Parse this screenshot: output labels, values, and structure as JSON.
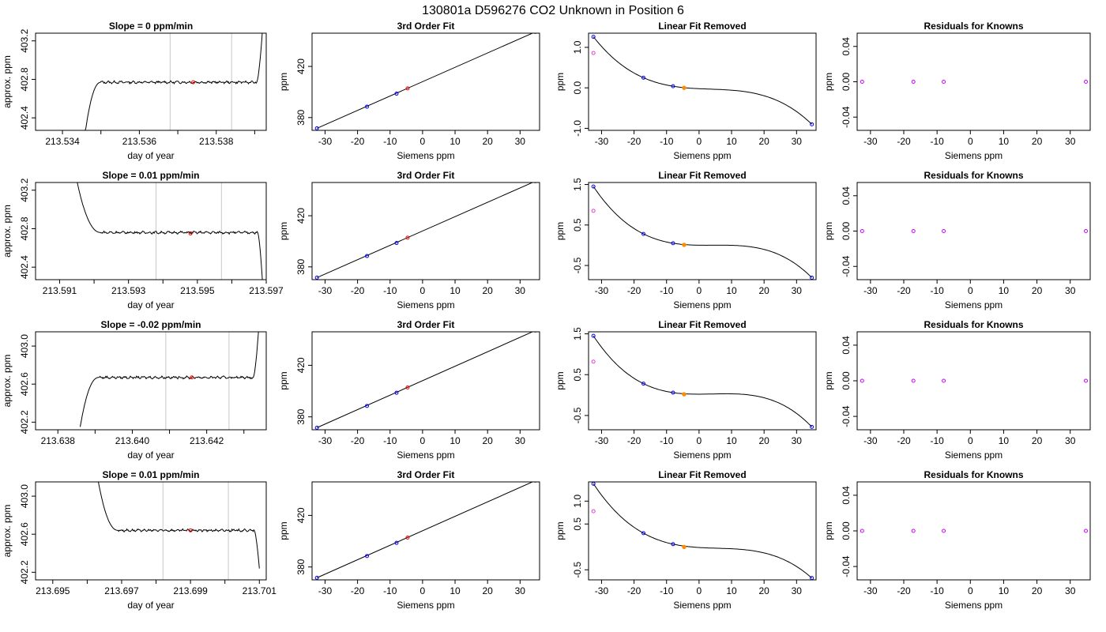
{
  "page_title": "130801a      D596276    CO2 Unknown in Position  6",
  "colors": {
    "trace": "#000000",
    "cursor": "#c8c8c8",
    "marker_red": "#ff0000",
    "known_blue": "#0000ff",
    "unknown_orange": "#ff8c00",
    "residual_magenta": "#cc00ff",
    "open_magenta": "#e040e0"
  },
  "rows": [
    {
      "ts": {
        "title": "Slope =  0  ppm/min",
        "xlabel": "day of year",
        "ylabel": "approx. ppm",
        "xlim": [
          213.5333,
          213.5393
        ],
        "ylim": [
          402.27,
          403.28
        ],
        "xticks": [
          213.534,
          213.535,
          213.536,
          213.537,
          213.538,
          213.539
        ],
        "xtick_labels": [
          "213.534",
          "",
          "213.536",
          "",
          "213.538",
          ""
        ],
        "yticks": [
          402.4,
          402.8,
          403.2
        ],
        "ytick_labels": [
          "402.4",
          "402.8",
          "403.2"
        ],
        "vlines": [
          213.5368,
          213.5384
        ],
        "red_point": {
          "x": 213.5374,
          "y": 402.77
        },
        "trace": {
          "x0": 213.5345,
          "x1": 213.5392,
          "rise_start": 213.5346,
          "rise_end": 213.535,
          "plateau_end": 213.53905,
          "y_start": 402.27,
          "y_plateau": 402.77,
          "y_end": 403.3
        }
      },
      "fit": {
        "title": "3rd Order Fit",
        "xlabel": "Siemens ppm",
        "ylabel": "ppm",
        "xlim": [
          -34,
          36
        ],
        "ylim": [
          370,
          446
        ],
        "xticks": [
          -30,
          -20,
          -10,
          0,
          10,
          20,
          30
        ],
        "yticks": [
          380,
          420
        ],
        "knowns": [
          [
            -32.5,
            371.6
          ],
          [
            -17.1,
            388.5
          ],
          [
            -8.0,
            398.7
          ],
          [
            34.7,
            447.0
          ]
        ],
        "unknown": [
          -4.6,
          402.8
        ]
      },
      "lin": {
        "title": "Linear Fit Removed",
        "xlabel": "Siemens ppm",
        "ylabel": "ppm",
        "xlim": [
          -34,
          36
        ],
        "ylim": [
          -1.05,
          1.35
        ],
        "xticks": [
          -30,
          -20,
          -10,
          0,
          10,
          20,
          30
        ],
        "yticks": [
          -1.0,
          0.0,
          1.0
        ],
        "ytick_labels": [
          "-1.0",
          "0.0",
          "1.0"
        ],
        "knowns": [
          [
            -32.5,
            1.26
          ],
          [
            -17.1,
            0.25
          ],
          [
            -8.0,
            0.04
          ],
          [
            34.7,
            -0.9
          ]
        ],
        "unknown": [
          -4.6,
          0.0
        ],
        "open_point": [
          -32.5,
          0.86
        ]
      },
      "res": {
        "title": "Residuals for Knowns",
        "xlabel": "Siemens ppm",
        "ylabel": "ppm",
        "xlim": [
          -34,
          36
        ],
        "ylim": [
          -0.055,
          0.055
        ],
        "xticks": [
          -30,
          -20,
          -10,
          0,
          10,
          20,
          30
        ],
        "yticks": [
          -0.04,
          0.0,
          0.04
        ],
        "ytick_labels": [
          "-0.04",
          "0.00",
          "0.04"
        ],
        "points": [
          [
            -32.5,
            0
          ],
          [
            -17.1,
            0
          ],
          [
            -8.0,
            0
          ],
          [
            34.7,
            0
          ]
        ]
      }
    },
    {
      "ts": {
        "title": "Slope =  0.01  ppm/min",
        "xlabel": "day of year",
        "ylabel": "approx. ppm",
        "xlim": [
          213.5903,
          213.597
        ],
        "ylim": [
          402.27,
          403.28
        ],
        "xticks": [
          213.591,
          213.592,
          213.593,
          213.594,
          213.595,
          213.596,
          213.597
        ],
        "xtick_labels": [
          "213.591",
          "",
          "213.593",
          "",
          "213.595",
          "",
          "213.597"
        ],
        "yticks": [
          402.4,
          402.8,
          403.2
        ],
        "ytick_labels": [
          "402.4",
          "402.8",
          "403.2"
        ],
        "vlines": [
          213.5938,
          213.5957
        ],
        "red_point": {
          "x": 213.5948,
          "y": 402.75
        },
        "trace": {
          "x0": 213.5915,
          "x1": 213.5969,
          "rise_start": 213.5915,
          "rise_end": 213.5922,
          "plateau_end": 213.59675,
          "y_start": 403.3,
          "y_plateau": 402.76,
          "y_end": 402.2
        }
      },
      "fit": {
        "title": "3rd Order Fit",
        "xlabel": "Siemens ppm",
        "ylabel": "ppm",
        "xlim": [
          -34,
          36
        ],
        "ylim": [
          370,
          446
        ],
        "xticks": [
          -30,
          -20,
          -10,
          0,
          10,
          20,
          30
        ],
        "yticks": [
          380,
          420
        ],
        "knowns": [
          [
            -32.5,
            371.6
          ],
          [
            -17.1,
            388.5
          ],
          [
            -8.0,
            398.7
          ],
          [
            34.7,
            447.0
          ]
        ],
        "unknown": [
          -4.6,
          402.8
        ]
      },
      "lin": {
        "title": "Linear Fit Removed",
        "xlabel": "Siemens ppm",
        "ylabel": "ppm",
        "xlim": [
          -34,
          36
        ],
        "ylim": [
          -0.85,
          1.55
        ],
        "xticks": [
          -30,
          -20,
          -10,
          0,
          10,
          20,
          30
        ],
        "yticks": [
          -0.5,
          0.5,
          1.5
        ],
        "ytick_labels": [
          "-0.5",
          "0.5",
          "1.5"
        ],
        "knowns": [
          [
            -32.5,
            1.45
          ],
          [
            -17.1,
            0.28
          ],
          [
            -8.0,
            0.05
          ],
          [
            34.7,
            -0.8
          ]
        ],
        "unknown": [
          -4.6,
          0.01
        ],
        "open_point": [
          -32.5,
          0.85
        ]
      },
      "res": {
        "title": "Residuals for Knowns",
        "xlabel": "Siemens ppm",
        "ylabel": "ppm",
        "xlim": [
          -34,
          36
        ],
        "ylim": [
          -0.055,
          0.055
        ],
        "xticks": [
          -30,
          -20,
          -10,
          0,
          10,
          20,
          30
        ],
        "yticks": [
          -0.04,
          0.0,
          0.04
        ],
        "ytick_labels": [
          "-0.04",
          "0.00",
          "0.04"
        ],
        "points": [
          [
            -32.5,
            0
          ],
          [
            -17.1,
            0
          ],
          [
            -8.0,
            0
          ],
          [
            34.7,
            0
          ]
        ]
      }
    },
    {
      "ts": {
        "title": "Slope =  -0.02  ppm/min",
        "xlabel": "day of year",
        "ylabel": "approx. ppm",
        "xlim": [
          213.6374,
          213.6436
        ],
        "ylim": [
          402.12,
          403.15
        ],
        "xticks": [
          213.638,
          213.639,
          213.64,
          213.641,
          213.642,
          213.643
        ],
        "xtick_labels": [
          "213.638",
          "",
          "213.640",
          "",
          "213.642",
          ""
        ],
        "yticks": [
          402.2,
          402.6,
          403.0
        ],
        "ytick_labels": [
          "402.2",
          "402.6",
          "403.0"
        ],
        "vlines": [
          213.6409,
          213.6426
        ],
        "red_point": {
          "x": 213.6416,
          "y": 402.67
        },
        "trace": {
          "x0": 213.6386,
          "x1": 213.6434,
          "rise_start": 213.6386,
          "rise_end": 213.6391,
          "plateau_end": 213.64325,
          "y_start": 402.15,
          "y_plateau": 402.67,
          "y_end": 403.2
        }
      },
      "fit": {
        "title": "3rd Order Fit",
        "xlabel": "Siemens ppm",
        "ylabel": "ppm",
        "xlim": [
          -34,
          36
        ],
        "ylim": [
          370,
          446
        ],
        "xticks": [
          -30,
          -20,
          -10,
          0,
          10,
          20,
          30
        ],
        "yticks": [
          380,
          420
        ],
        "knowns": [
          [
            -32.5,
            371.6
          ],
          [
            -17.1,
            388.5
          ],
          [
            -8.0,
            398.7
          ],
          [
            34.7,
            447.0
          ]
        ],
        "unknown": [
          -4.6,
          402.8
        ]
      },
      "lin": {
        "title": "Linear Fit Removed",
        "xlabel": "Siemens ppm",
        "ylabel": "ppm",
        "xlim": [
          -34,
          36
        ],
        "ylim": [
          -0.85,
          1.55
        ],
        "xticks": [
          -30,
          -20,
          -10,
          0,
          10,
          20,
          30
        ],
        "yticks": [
          -0.5,
          0.5,
          1.5
        ],
        "ytick_labels": [
          "-0.5",
          "0.5",
          "1.5"
        ],
        "knowns": [
          [
            -32.5,
            1.45
          ],
          [
            -17.1,
            0.28
          ],
          [
            -8.0,
            0.06
          ],
          [
            34.7,
            -0.78
          ]
        ],
        "unknown": [
          -4.6,
          0.02
        ],
        "open_point": [
          -32.5,
          0.82
        ]
      },
      "res": {
        "title": "Residuals for Knowns",
        "xlabel": "Siemens ppm",
        "ylabel": "ppm",
        "xlim": [
          -34,
          36
        ],
        "ylim": [
          -0.055,
          0.055
        ],
        "xticks": [
          -30,
          -20,
          -10,
          0,
          10,
          20,
          30
        ],
        "yticks": [
          -0.04,
          0.0,
          0.04
        ],
        "ytick_labels": [
          "-0.04",
          "0.00",
          "0.04"
        ],
        "points": [
          [
            -32.5,
            0
          ],
          [
            -17.1,
            0
          ],
          [
            -8.0,
            0
          ],
          [
            34.7,
            0
          ]
        ]
      }
    },
    {
      "ts": {
        "title": "Slope =  0.01  ppm/min",
        "xlabel": "day of year",
        "ylabel": "approx. ppm",
        "xlim": [
          213.6945,
          213.7012
        ],
        "ylim": [
          402.12,
          403.15
        ],
        "xticks": [
          213.695,
          213.696,
          213.697,
          213.698,
          213.699,
          213.7,
          213.701
        ],
        "xtick_labels": [
          "213.695",
          "",
          "213.697",
          "",
          "213.699",
          "",
          "213.701"
        ],
        "yticks": [
          402.2,
          402.6,
          403.0
        ],
        "ytick_labels": [
          "402.2",
          "402.6",
          "403.0"
        ],
        "vlines": [
          213.6982,
          213.7001
        ],
        "red_point": {
          "x": 213.699,
          "y": 402.64
        },
        "trace": {
          "x0": 213.6963,
          "x1": 213.701,
          "rise_start": 213.6963,
          "rise_end": 213.6969,
          "plateau_end": 213.70085,
          "y_start": 403.2,
          "y_plateau": 402.64,
          "y_end": 402.24
        }
      },
      "fit": {
        "title": "3rd Order Fit",
        "xlabel": "Siemens ppm",
        "ylabel": "ppm",
        "xlim": [
          -34,
          36
        ],
        "ylim": [
          370,
          446
        ],
        "xticks": [
          -30,
          -20,
          -10,
          0,
          10,
          20,
          30
        ],
        "yticks": [
          380,
          420
        ],
        "knowns": [
          [
            -32.5,
            371.6
          ],
          [
            -17.1,
            388.5
          ],
          [
            -8.0,
            398.7
          ],
          [
            34.7,
            447.0
          ]
        ],
        "unknown": [
          -4.6,
          402.8
        ]
      },
      "lin": {
        "title": "Linear Fit Removed",
        "xlabel": "Siemens ppm",
        "ylabel": "ppm",
        "xlim": [
          -34,
          36
        ],
        "ylim": [
          -0.72,
          1.42
        ],
        "xticks": [
          -30,
          -20,
          -10,
          0,
          10,
          20,
          30
        ],
        "yticks": [
          -0.5,
          0.5,
          1.0
        ],
        "ytick_labels": [
          "-0.5",
          "0.5",
          "1.0"
        ],
        "knowns": [
          [
            -32.5,
            1.38
          ],
          [
            -17.1,
            0.3
          ],
          [
            -8.0,
            0.06
          ],
          [
            34.7,
            -0.68
          ]
        ],
        "unknown": [
          -4.6,
          0.0
        ],
        "open_point": [
          -32.5,
          0.78
        ]
      },
      "res": {
        "title": "Residuals for Knowns",
        "xlabel": "Siemens ppm",
        "ylabel": "ppm",
        "xlim": [
          -34,
          36
        ],
        "ylim": [
          -0.055,
          0.055
        ],
        "xticks": [
          -30,
          -20,
          -10,
          0,
          10,
          20,
          30
        ],
        "yticks": [
          -0.04,
          0.0,
          0.04
        ],
        "ytick_labels": [
          "-0.04",
          "0.00",
          "0.04"
        ],
        "points": [
          [
            -32.5,
            0
          ],
          [
            -17.1,
            0
          ],
          [
            -8.0,
            0
          ],
          [
            34.7,
            0
          ]
        ]
      }
    }
  ]
}
